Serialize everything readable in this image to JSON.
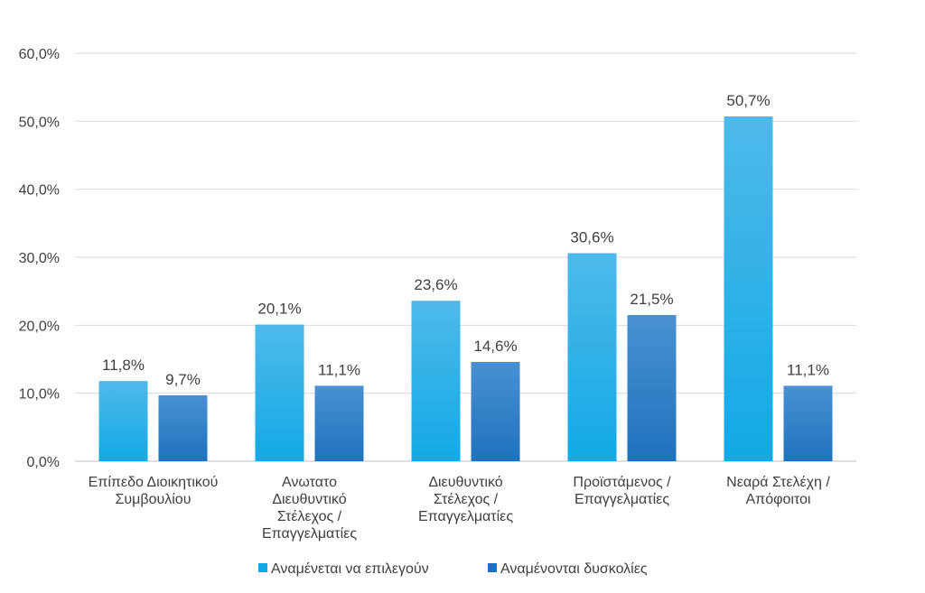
{
  "chart_data": {
    "type": "bar",
    "categories": [
      [
        "Επίπεδο Διοικητικού",
        "Συμβουλίου"
      ],
      [
        "Ανωτατο",
        "Διευθυντικό",
        "Στέλεχος /",
        "Επαγγελματίες"
      ],
      [
        "Διευθυντικό",
        "Στέλεχος /",
        "Επαγγελματίες"
      ],
      [
        "Προϊστάμενος /",
        "Επαγγελματίες"
      ],
      [
        "Νεαρά Στελέχη /",
        "Απόφοιτοι"
      ]
    ],
    "series": [
      {
        "name": "Αναμένεται να επιλεγούν",
        "values": [
          11.8,
          20.1,
          23.6,
          30.6,
          50.7
        ],
        "labels": [
          "11,8%",
          "20,1%",
          "23,6%",
          "30,6%",
          "50,7%"
        ],
        "color_top": "#4fb9ea",
        "color_bottom": "#12a9e6"
      },
      {
        "name": "Αναμένονται δυσκολίες",
        "values": [
          9.7,
          11.1,
          14.6,
          21.5,
          11.1
        ],
        "labels": [
          "9,7%",
          "11,1%",
          "14,6%",
          "21,5%",
          "11,1%"
        ],
        "color_top": "#4a90d4",
        "color_bottom": "#1e72bc"
      }
    ],
    "yticks": [
      "0,0%",
      "10,0%",
      "20,0%",
      "30,0%",
      "40,0%",
      "50,0%",
      "60,0%"
    ],
    "ylim": [
      0,
      60
    ],
    "grid": true,
    "legend": "bottom",
    "title": "",
    "xlabel": "",
    "ylabel": ""
  }
}
